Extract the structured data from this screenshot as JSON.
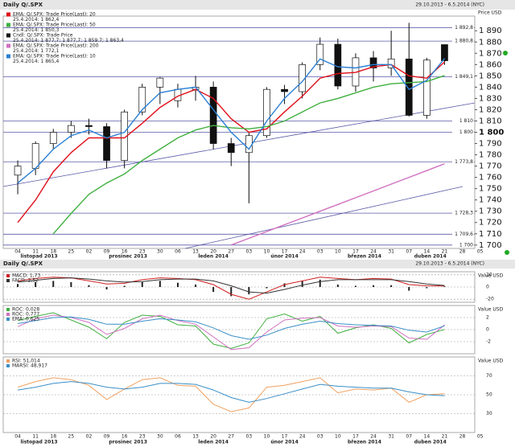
{
  "chart_data": [
    {
      "type": "candlestick",
      "title": "Daily Q/.SPX",
      "subtitle": "29.10.2013 - 6.5.2014 (NYC)",
      "y_label": "Price USD",
      "categories": [
        "04",
        "11",
        "18",
        "25",
        "02",
        "09",
        "16",
        "23",
        "30",
        "06",
        "13",
        "20",
        "27",
        "03",
        "10",
        "17",
        "24",
        "03",
        "10",
        "17",
        "24",
        "31",
        "07",
        "14",
        "21",
        "28",
        "05"
      ],
      "months": [
        "listopad 2013",
        "prosinec 2013",
        "leden 2014",
        "únor 2014",
        "březen 2014",
        "duben 2014"
      ],
      "open": [
        1762,
        1768,
        1790,
        1800,
        1806,
        1805,
        1775,
        1818,
        1840,
        1828,
        1838,
        1840,
        1790,
        1782,
        1797,
        1838,
        1836,
        1860,
        1878,
        1841,
        1866,
        1857,
        1865,
        1815,
        1877.7,
        null,
        null
      ],
      "high": [
        1775,
        1792,
        1803,
        1810,
        1812,
        1808,
        1820,
        1843,
        1849,
        1843,
        1850,
        1845,
        1795,
        1800,
        1840,
        1842,
        1862,
        1884,
        1883,
        1870,
        1872,
        1890,
        1897,
        1866,
        1877.7,
        null,
        null
      ],
      "low": [
        1745,
        1762,
        1785,
        1795,
        1798,
        1768,
        1768,
        1815,
        1825,
        1822,
        1828,
        1785,
        1770,
        1737,
        1795,
        1825,
        1830,
        1855,
        1838,
        1836,
        1845,
        1850,
        1814,
        1812,
        1859.7,
        null,
        null
      ],
      "close": [
        1770,
        1790,
        1800,
        1806,
        1805,
        1775,
        1818,
        1840,
        1848,
        1838,
        1840,
        1790,
        1782,
        1797,
        1838,
        1836,
        1860,
        1878,
        1841,
        1866,
        1857,
        1865,
        1815,
        1864,
        1863.4,
        null,
        null
      ],
      "candle_color_up": "#ffffff",
      "candle_color_down": "#111111",
      "candle_legend": {
        "name": "Cndl: Q/.SPX: Trade Price",
        "value_label": "25.4.2014: 1 877,7; 1 877,7; 1 859,7; 1 863,4"
      },
      "series": [
        {
          "name": "EMA: Q/.SPX: Trade Price(Last): 20",
          "value_label": "25.4.2014: 1 862,4",
          "color": "#e0101a",
          "values": [
            1720,
            1740,
            1765,
            1782,
            1795,
            1795,
            1795,
            1808,
            1822,
            1832,
            1838,
            1830,
            1812,
            1800,
            1803,
            1818,
            1832,
            1848,
            1852,
            1853,
            1858,
            1860,
            1850,
            1848,
            1862.4,
            null,
            null
          ]
        },
        {
          "name": "EMA: Q/.SPX: Trade Price(Last): 50",
          "value_label": "25.4.2014: 1 850,3",
          "color": "#40b040",
          "values": [
            null,
            null,
            1710,
            1728,
            1745,
            1755,
            1763,
            1775,
            1785,
            1795,
            1802,
            1806,
            1804,
            1803,
            1805,
            1810,
            1818,
            1826,
            1830,
            1835,
            1840,
            1843,
            1844,
            1845,
            1850.3,
            null,
            null
          ]
        },
        {
          "name": "EMA: Q/.SPX: Trade Price(Last): 200",
          "value_label": "25.4.2014: 1 772,1",
          "color": "#d070c0",
          "values": [
            null,
            null,
            null,
            null,
            null,
            null,
            null,
            null,
            null,
            null,
            null,
            null,
            1700,
            1706,
            1712,
            1718,
            1724,
            1730,
            1736,
            1742,
            1748,
            1754,
            1760,
            1766,
            1772.1,
            null,
            null
          ]
        },
        {
          "name": "EMA: Q/.SPX: Trade Price(Last): 10",
          "value_label": "25.4.2014: 1 865,4",
          "color": "#2a7fd4",
          "values": [
            1755,
            1768,
            1785,
            1797,
            1802,
            1795,
            1800,
            1820,
            1835,
            1838,
            1840,
            1820,
            1800,
            1785,
            1810,
            1830,
            1845,
            1865,
            1858,
            1857,
            1860,
            1860,
            1838,
            1846,
            1865.4,
            null,
            null
          ]
        }
      ],
      "hlines": [
        {
          "value": 1892.8,
          "label": "1 892,8"
        },
        {
          "value": 1880.8,
          "label": "1 880,8"
        },
        {
          "value": 1849.1,
          "label": "1 849,1"
        },
        {
          "value": 1810,
          "label": "1 810"
        },
        {
          "value": 1800,
          "label": "1 800"
        },
        {
          "value": 1773.8,
          "label": "1 773,8"
        },
        {
          "value": 1728.3,
          "label": "1 728,3"
        },
        {
          "value": 1709.6,
          "label": "1 709,6"
        },
        {
          "value": 1700,
          "label": "1 700"
        }
      ],
      "hline_color": "#5a5aa8",
      "ylim": [
        1697,
        1903
      ],
      "yticks": [
        {
          "value": 1700,
          "label": "1 700"
        },
        {
          "value": 1710,
          "label": "1 710"
        },
        {
          "value": 1720,
          "label": "1 720"
        },
        {
          "value": 1730,
          "label": "1 730"
        },
        {
          "value": 1740,
          "label": "1 740"
        },
        {
          "value": 1750,
          "label": "1 750"
        },
        {
          "value": 1760,
          "label": "1 760"
        },
        {
          "value": 1770,
          "label": "1 770"
        },
        {
          "value": 1780,
          "label": "1 780"
        },
        {
          "value": 1790,
          "label": "1 790"
        },
        {
          "value": 1800,
          "label": "1 800"
        },
        {
          "value": 1810,
          "label": "1 810"
        },
        {
          "value": 1820,
          "label": "1 820"
        },
        {
          "value": 1830,
          "label": "1 830"
        },
        {
          "value": 1840,
          "label": "1 840"
        },
        {
          "value": 1850,
          "label": "1 850"
        },
        {
          "value": 1860,
          "label": "1 860"
        },
        {
          "value": 1870,
          "label": "1 870"
        },
        {
          "value": 1880,
          "label": "1 880"
        },
        {
          "value": 1890,
          "label": "1 890"
        }
      ]
    },
    {
      "type": "macd",
      "title": "Daily Q/.SPX",
      "subtitle": "29.10.2013 - 6.5.2014 (NYC)",
      "y_label": "Value USD",
      "histogram": {
        "color": "#222222",
        "values": [
          5,
          8,
          10,
          8,
          3,
          -4,
          2,
          8,
          10,
          7,
          4,
          -8,
          -15,
          -12,
          -2,
          6,
          10,
          12,
          4,
          2,
          3,
          3,
          -6,
          -2,
          1,
          null,
          null
        ]
      },
      "series": [
        {
          "name": "MACD: 1,73",
          "color": "#d02020",
          "values": [
            10,
            14,
            16,
            15,
            10,
            5,
            6,
            12,
            15,
            14,
            12,
            4,
            -12,
            -20,
            -8,
            4,
            10,
            16,
            14,
            12,
            14,
            13,
            4,
            2,
            1.73,
            null,
            null
          ]
        },
        {
          "name": "FACD: 2,52",
          "color": "#333333",
          "values": [
            8,
            11,
            14,
            15,
            13,
            10,
            8,
            9,
            12,
            13,
            13,
            10,
            2,
            -8,
            -10,
            -4,
            3,
            9,
            12,
            12,
            12,
            12,
            9,
            5,
            2.52,
            null,
            null
          ]
        }
      ],
      "ylim": [
        -25,
        25
      ],
      "yticks": [
        -20,
        0,
        20
      ]
    },
    {
      "type": "line",
      "y_label": "Value USD",
      "series": [
        {
          "name": "ROC: 0,028",
          "color": "#40b040",
          "values": [
            1.5,
            2.2,
            2.8,
            1.6,
            0.4,
            -1.5,
            1.2,
            2.4,
            2.2,
            0.8,
            0.6,
            -2.4,
            -3.1,
            -2.2,
            1.8,
            2.6,
            1.4,
            2.2,
            -0.6,
            0.3,
            0.8,
            0.2,
            -2.2,
            -0.8,
            0.028,
            null,
            null
          ]
        },
        {
          "name": "ROC: 0,777",
          "color": "#d070c0",
          "values": [
            0.5,
            1.8,
            2.4,
            2.0,
            1.2,
            -0.8,
            0.2,
            1.8,
            2.4,
            1.5,
            0.9,
            -1.2,
            -3.3,
            -3.0,
            -0.4,
            1.6,
            1.9,
            2.0,
            0.6,
            0.4,
            0.6,
            0.5,
            -1.4,
            -1.6,
            0.777,
            null,
            null
          ]
        },
        {
          "name": "EMA: 0,625",
          "color": "#3a8fc8",
          "values": [
            1.0,
            1.5,
            2.0,
            2.1,
            1.7,
            0.9,
            0.9,
            1.4,
            1.8,
            1.6,
            1.3,
            0.3,
            -1.0,
            -1.6,
            -0.9,
            0.2,
            0.9,
            1.4,
            1.0,
            0.8,
            0.7,
            0.6,
            -0.1,
            -0.4,
            0.625,
            null,
            null
          ]
        }
      ],
      "ylim": [
        -4,
        4
      ],
      "yticks": [
        -2,
        0,
        2
      ]
    },
    {
      "type": "line",
      "y_label": "Value USD",
      "series": [
        {
          "name": "RSI: 51,014",
          "color": "#f0a060",
          "values": [
            58,
            64,
            68,
            66,
            60,
            45,
            56,
            66,
            68,
            60,
            59,
            40,
            32,
            36,
            58,
            60,
            64,
            68,
            52,
            56,
            55,
            57,
            42,
            50,
            51.014,
            null,
            null
          ]
        },
        {
          "name": "MARSI: 48,917",
          "color": "#3a8fc8",
          "values": [
            55,
            58,
            62,
            64,
            62,
            58,
            56,
            58,
            62,
            62,
            61,
            55,
            47,
            42,
            46,
            51,
            56,
            61,
            59,
            58,
            57,
            57,
            53,
            50,
            48.917,
            null,
            null
          ]
        }
      ],
      "ylim": [
        10,
        90
      ],
      "yticks": [
        30,
        50,
        70
      ]
    }
  ]
}
